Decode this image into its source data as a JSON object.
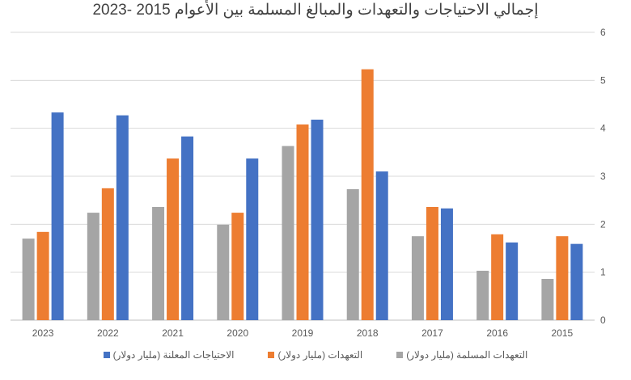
{
  "chart_data": {
    "type": "bar",
    "title": "إجمالي الاحتياجات والتعهدات والمبالغ المسلمة بين الأعوام 2015 -2023",
    "categories": [
      "2023",
      "2022",
      "2021",
      "2020",
      "2019",
      "2018",
      "2017",
      "2016",
      "2015"
    ],
    "series": [
      {
        "name": "التعهدات المسلمة (مليار دولار)",
        "color": "#A5A5A5",
        "values": [
          1.7,
          2.24,
          2.36,
          1.99,
          3.63,
          2.73,
          1.75,
          1.03,
          0.86
        ]
      },
      {
        "name": "التعهدات (مليار دولار)",
        "color": "#ED7D31",
        "values": [
          1.84,
          2.75,
          3.37,
          2.24,
          4.08,
          5.23,
          2.36,
          1.79,
          1.75
        ]
      },
      {
        "name": "الاحتياجات المعلنة (مليار دولار)",
        "color": "#4472C4",
        "values": [
          4.33,
          4.27,
          3.83,
          3.37,
          4.18,
          3.1,
          2.33,
          1.62,
          1.59
        ]
      }
    ],
    "yticks": [
      "0",
      "1",
      "2",
      "3",
      "4",
      "5",
      "6"
    ],
    "ylim": [
      0,
      6
    ],
    "yaxis_side": "right",
    "grid": true,
    "legend": "bottom",
    "xlabel": "",
    "ylabel": ""
  }
}
